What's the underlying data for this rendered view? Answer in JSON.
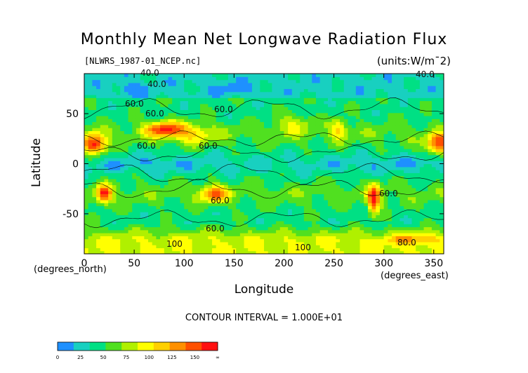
{
  "chart_data": {
    "type": "heatmap",
    "title": "Monthly Mean Net Longwave Radiation Flux",
    "subtitle_left": "[NLWRS_1987-01_NCEP.nc]",
    "units": "(units:W/m¯2)",
    "xlabel": "Longitude",
    "ylabel": "Latitude",
    "x_unit": "(degrees_north)",
    "x_unit2": "(degrees_east)",
    "xlim": [
      0,
      360
    ],
    "ylim": [
      -90,
      90
    ],
    "x_ticks": [
      0,
      50,
      100,
      150,
      200,
      250,
      300,
      350
    ],
    "y_ticks": [
      50,
      0,
      -50
    ],
    "contour_interval_text": "CONTOUR INTERVAL = 1.000E+01",
    "contour_labels": [
      "40.0",
      "40.0",
      "60.0",
      "60.0",
      "60.0",
      "60.0",
      "60.0",
      "60.0",
      "60.0",
      "80.0",
      "100",
      "100",
      "40.0",
      "60.0"
    ],
    "colorbar": {
      "labels": [
        "0",
        "25",
        "50",
        "75",
        "100",
        "125",
        "150",
        "∞"
      ],
      "colors": [
        "#1e90ff",
        "#18d0c0",
        "#00e084",
        "#50e020",
        "#b0f000",
        "#ffff00",
        "#ffd000",
        "#ff9000",
        "#ff5000",
        "#ff1010"
      ]
    }
  }
}
